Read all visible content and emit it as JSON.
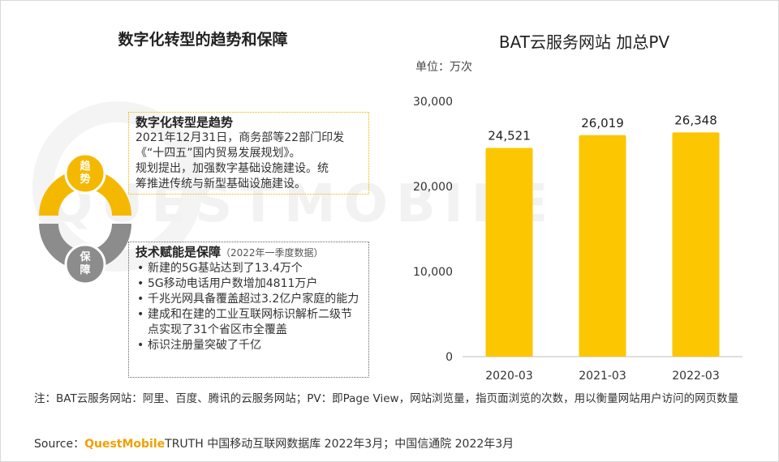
{
  "left_title": "数字化转型的趋势和保障",
  "cycle": {
    "node1": "趋势",
    "node2": "保障",
    "colors": {
      "trend": "#f5b800",
      "guarantee": "#8c8c8c"
    }
  },
  "box1": {
    "heading": "数字化转型是趋势",
    "lines": [
      "2021年12月31日，商务部等22部门印发",
      "《“十四五”国内贸易发展规划》。",
      "规划提出，加强数字基础设施建设。统",
      "筹推进传统与新型基础设施建设。"
    ]
  },
  "box2": {
    "heading": "技术赋能是保障",
    "subheading": "（2022年一季度数据）",
    "bullets": [
      "新建的5G基站达到了13.4万个",
      "5G移动电话用户数增加4811万户",
      "千兆光网具备覆盖超过3.2亿户家庭的能力",
      "建成和在建的工业互联网标识解析二级节点实现了31个省区市全覆盖",
      "标识注册量突破了千亿"
    ]
  },
  "right_title": "BAT云服务网站 加总PV",
  "unit": "单位：万次",
  "chart_data": {
    "type": "bar",
    "categories": [
      "2020-03",
      "2021-03",
      "2022-03"
    ],
    "values": [
      24521,
      26019,
      26348
    ],
    "value_labels": [
      "24,521",
      "26,019",
      "26,348"
    ],
    "title": "BAT云服务网站 加总PV",
    "ylabel": "单位：万次",
    "ylim": [
      0,
      30000
    ],
    "yticks": [
      0,
      10000,
      20000,
      30000
    ],
    "ytick_labels": [
      "0",
      "10,000",
      "20,000",
      "30,000"
    ],
    "grid": false,
    "bar_color": "#fcc600"
  },
  "footnote": "注：BAT云服务网站：阿里、百度、腾讯的云服务网站；PV：即Page View，网站浏览量，指页面浏览的次数，用以衡量网站用户访问的网页数量",
  "source": {
    "prefix": "Source：",
    "brand": "QuestMobile",
    "rest": "TRUTH 中国移动互联网数据库 2022年3月；中国信通院 2022年3月"
  },
  "watermark": "QUESTMOBILE"
}
